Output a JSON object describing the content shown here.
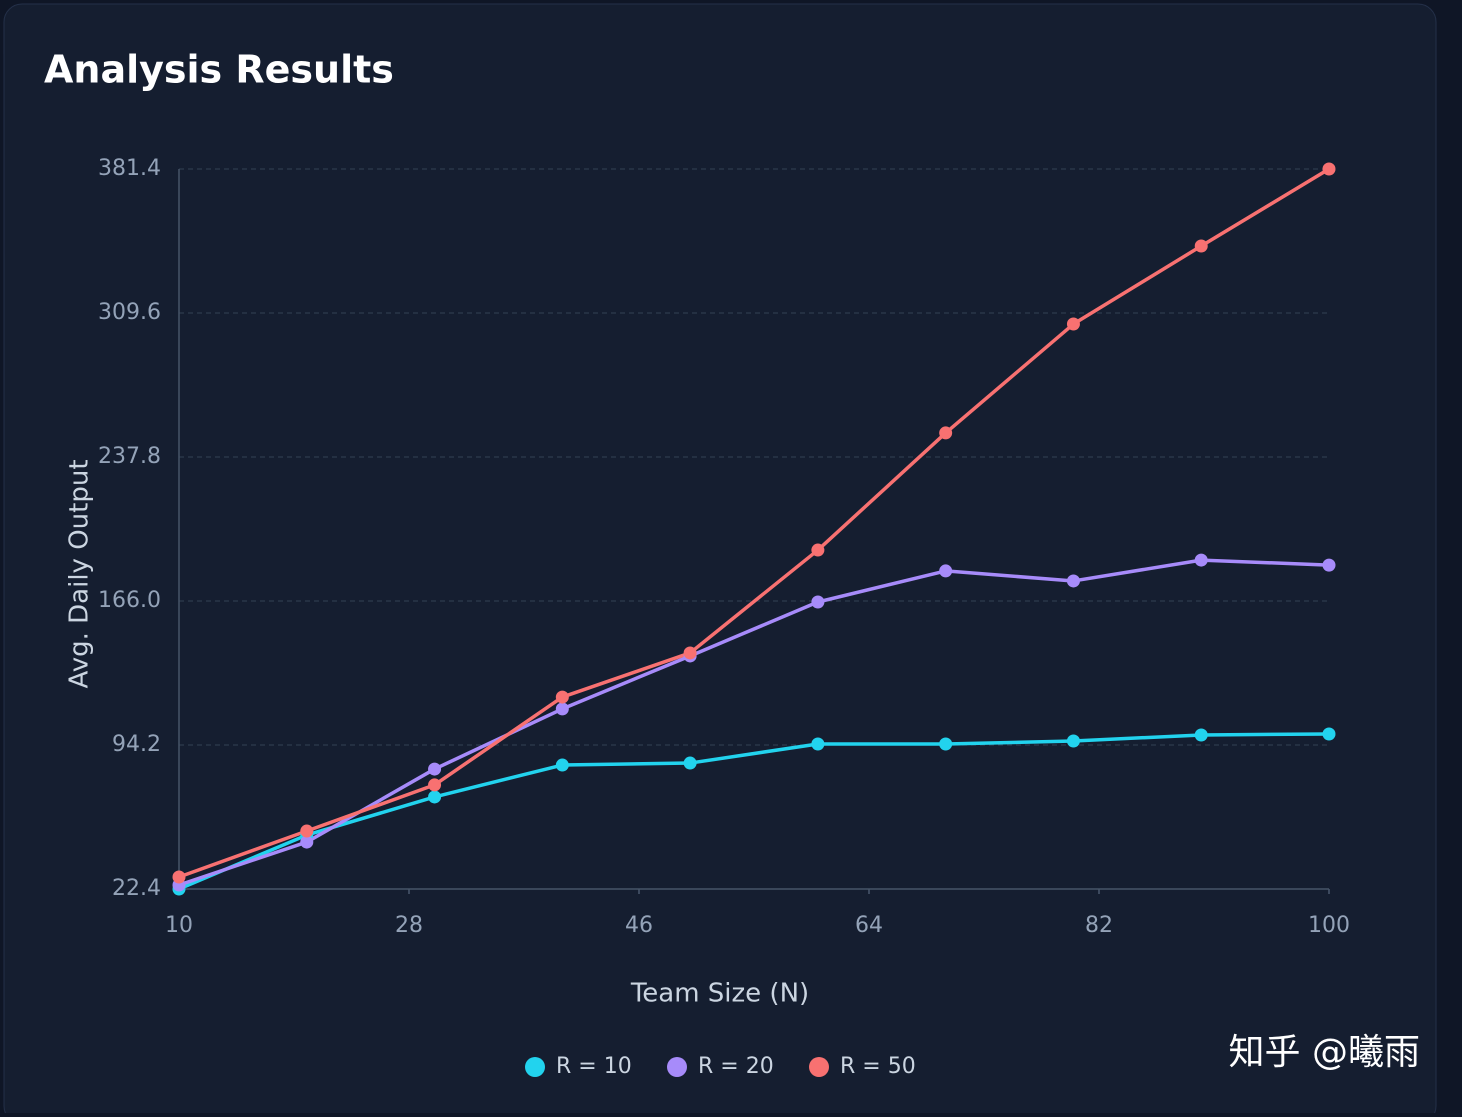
{
  "chart_data": {
    "type": "line",
    "title": "Analysis Results",
    "x_label": "Team Size (N)",
    "y_label": "Avg. Daily Output",
    "x": [
      10,
      20,
      30,
      40,
      50,
      60,
      70,
      80,
      90,
      100
    ],
    "series": [
      {
        "name": "R = 10",
        "color": "#22d3ee",
        "values": [
          22.4,
          49.3,
          68.3,
          84.2,
          85.2,
          94.7,
          94.7,
          96.2,
          99.2,
          99.7
        ]
      },
      {
        "name": "R = 20",
        "color": "#a78bfa",
        "values": [
          24.4,
          45.8,
          82.2,
          112.2,
          138.6,
          165.5,
          181.0,
          176.0,
          186.4,
          183.9
        ]
      },
      {
        "name": "R = 50",
        "color": "#f87171",
        "values": [
          28.4,
          51.3,
          74.3,
          118.1,
          140.1,
          191.4,
          249.8,
          304.1,
          343.0,
          381.4
        ]
      }
    ],
    "xlim": [
      10,
      100
    ],
    "xticks": [
      10,
      28,
      46,
      64,
      82,
      100
    ],
    "ylim": [
      22.4,
      381.4
    ],
    "yticks": [
      22.4,
      94.2,
      {
        "value": 166,
        "label": "166.0"
      },
      237.8,
      309.6,
      381.4
    ],
    "grid": true,
    "legend": "bottom",
    "watermark": "知乎 @曦雨"
  }
}
